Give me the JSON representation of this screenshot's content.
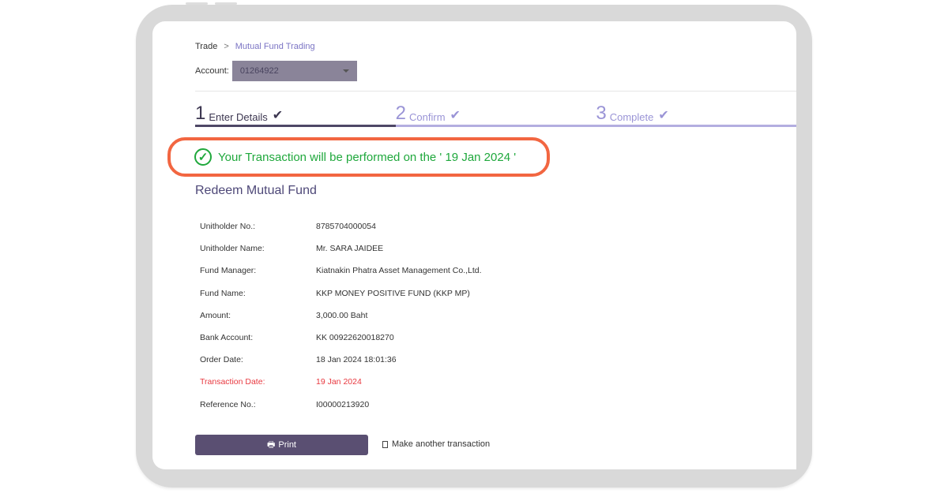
{
  "breadcrumb": {
    "parent": "Trade",
    "current": "Mutual Fund Trading"
  },
  "account": {
    "label": "Account:",
    "value": "01264922"
  },
  "steps": [
    {
      "num": "1",
      "label": "Enter Details",
      "state": "done"
    },
    {
      "num": "2",
      "label": "Confirm",
      "state": "done"
    },
    {
      "num": "3",
      "label": "Complete",
      "state": "done"
    }
  ],
  "notice": {
    "text": "Your Transaction will be performed on the ' 19 Jan 2024 '",
    "icon": "check-circle-icon",
    "color": "#1fa83c",
    "highlight_color": "#f26641"
  },
  "section_title": "Redeem Mutual Fund",
  "details": [
    {
      "label": "Unitholder No.:",
      "value": "8785704000054"
    },
    {
      "label": "Unitholder Name:",
      "value": "Mr. SARA JAIDEE"
    },
    {
      "label": "Fund Manager:",
      "value": "Kiatnakin Phatra Asset Management Co.,Ltd."
    },
    {
      "label": "Fund Name:",
      "value": "KKP MONEY POSITIVE FUND (KKP MP)"
    },
    {
      "label": "Amount:",
      "value": "3,000.00 Baht"
    },
    {
      "label": "Bank Account:",
      "value": "KK 00922620018270"
    },
    {
      "label": "Order Date:",
      "value": "18 Jan 2024 18:01:36"
    },
    {
      "label": "Transaction Date:",
      "value": "19 Jan 2024"
    },
    {
      "label": "Reference No.:",
      "value": "I00000213920"
    }
  ],
  "actions": {
    "print": "Print",
    "another": "Make another transaction"
  }
}
